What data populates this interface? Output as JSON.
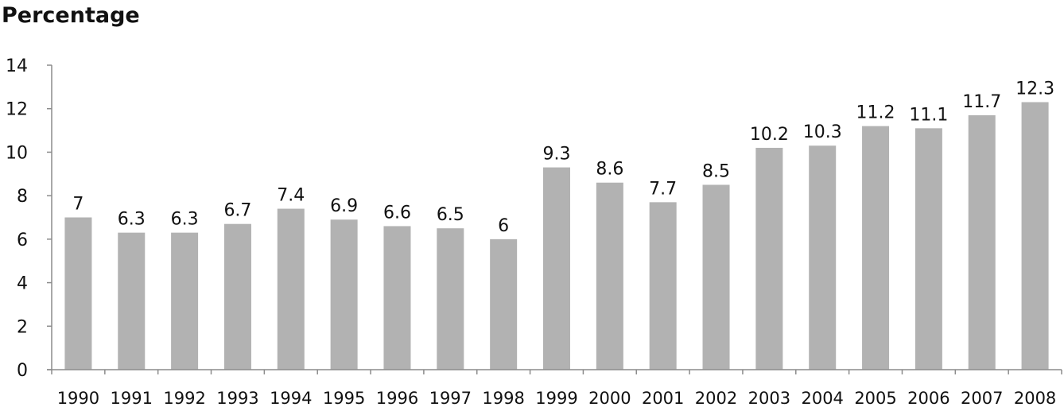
{
  "chart_data": {
    "type": "bar",
    "title": "Percentage",
    "xlabel": "",
    "ylabel": "",
    "categories": [
      "1990",
      "1991",
      "1992",
      "1993",
      "1994",
      "1995",
      "1996",
      "1997",
      "1998",
      "1999",
      "2000",
      "2001",
      "2002",
      "2003",
      "2004",
      "2005",
      "2006",
      "2007",
      "2008"
    ],
    "values": [
      7,
      6.3,
      6.3,
      6.7,
      7.4,
      6.9,
      6.6,
      6.5,
      6,
      9.3,
      8.6,
      7.7,
      8.5,
      10.2,
      10.3,
      11.2,
      11.1,
      11.7,
      12.3
    ],
    "value_labels": [
      "7",
      "6.3",
      "6.3",
      "6.7",
      "7.4",
      "6.9",
      "6.6",
      "6.5",
      "6",
      "9.3",
      "8.6",
      "7.7",
      "8.5",
      "10.2",
      "10.3",
      "11.2",
      "11.1",
      "11.7",
      "12.3"
    ],
    "ylim": [
      0,
      14
    ],
    "yticks": [
      "0",
      "2",
      "4",
      "6",
      "8",
      "10",
      "12",
      "14"
    ],
    "grid": false,
    "legend": "none",
    "bar_color": "#b2b2b2",
    "axis_color": "#8c8c8c"
  }
}
